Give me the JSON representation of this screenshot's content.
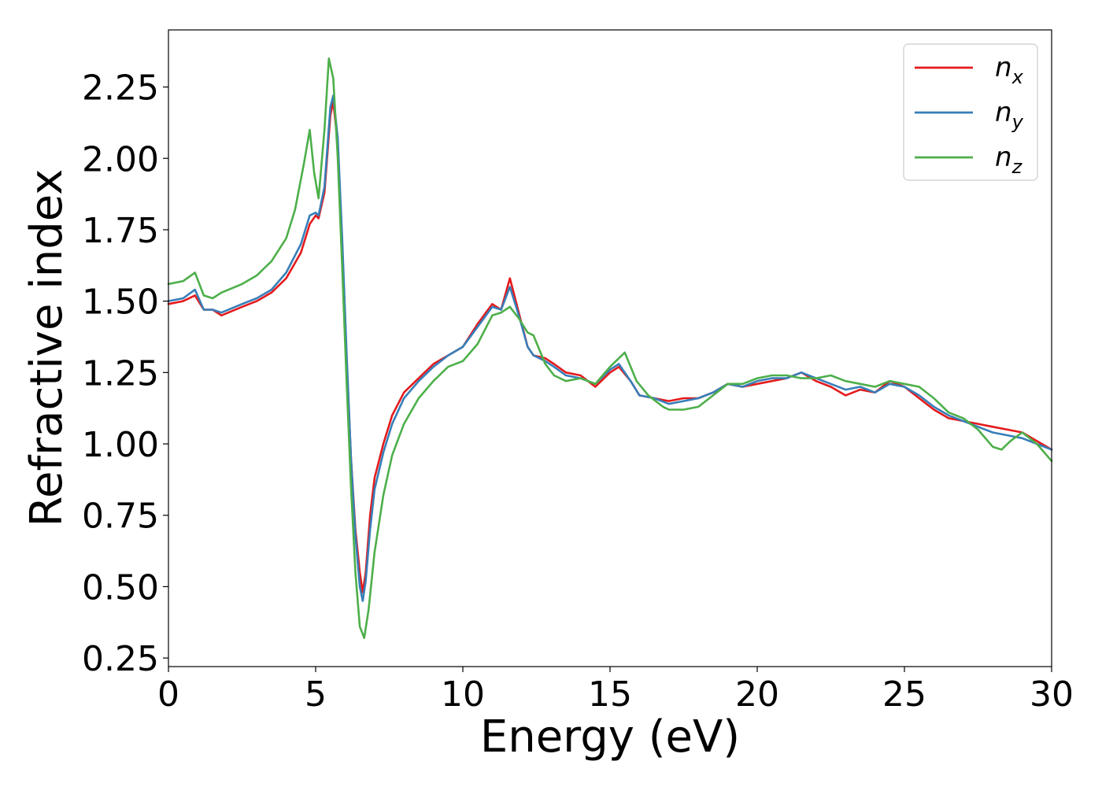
{
  "chart_data": {
    "type": "line",
    "title": "",
    "xlabel": "Energy (eV)",
    "ylabel": "Refractive index",
    "xlim": [
      0,
      30
    ],
    "ylim": [
      0.22,
      2.45
    ],
    "xticks": [
      0,
      5,
      10,
      15,
      20,
      25,
      30
    ],
    "xtick_labels": [
      "0",
      "5",
      "10",
      "15",
      "20",
      "25",
      "30"
    ],
    "yticks": [
      0.25,
      0.5,
      0.75,
      1.0,
      1.25,
      1.5,
      1.75,
      2.0,
      2.25
    ],
    "ytick_labels": [
      "0.25",
      "0.50",
      "0.75",
      "1.00",
      "1.25",
      "1.50",
      "1.75",
      "2.00",
      "2.25"
    ],
    "grid": false,
    "legend_position": "top-right",
    "series": [
      {
        "name": "n_x",
        "legend_base": "n",
        "legend_sub": "x",
        "color": "#e41a1c",
        "points": [
          [
            0,
            1.49
          ],
          [
            0.5,
            1.5
          ],
          [
            0.9,
            1.52
          ],
          [
            1.2,
            1.47
          ],
          [
            1.5,
            1.47
          ],
          [
            1.8,
            1.45
          ],
          [
            2.5,
            1.48
          ],
          [
            3.0,
            1.5
          ],
          [
            3.5,
            1.53
          ],
          [
            4.0,
            1.58
          ],
          [
            4.5,
            1.67
          ],
          [
            4.8,
            1.77
          ],
          [
            5.0,
            1.8
          ],
          [
            5.1,
            1.79
          ],
          [
            5.3,
            1.88
          ],
          [
            5.5,
            2.15
          ],
          [
            5.6,
            2.2
          ],
          [
            5.75,
            2.05
          ],
          [
            5.9,
            1.7
          ],
          [
            6.05,
            1.3
          ],
          [
            6.2,
            0.95
          ],
          [
            6.35,
            0.7
          ],
          [
            6.5,
            0.55
          ],
          [
            6.6,
            0.48
          ],
          [
            6.7,
            0.55
          ],
          [
            6.85,
            0.75
          ],
          [
            7.0,
            0.88
          ],
          [
            7.3,
            1.0
          ],
          [
            7.6,
            1.1
          ],
          [
            8.0,
            1.18
          ],
          [
            8.5,
            1.23
          ],
          [
            9.0,
            1.28
          ],
          [
            9.5,
            1.31
          ],
          [
            10.0,
            1.34
          ],
          [
            10.5,
            1.42
          ],
          [
            11.0,
            1.49
          ],
          [
            11.3,
            1.47
          ],
          [
            11.6,
            1.58
          ],
          [
            11.9,
            1.46
          ],
          [
            12.2,
            1.34
          ],
          [
            12.4,
            1.31
          ],
          [
            12.8,
            1.3
          ],
          [
            13.1,
            1.28
          ],
          [
            13.5,
            1.25
          ],
          [
            14.0,
            1.24
          ],
          [
            14.5,
            1.2
          ],
          [
            15.0,
            1.25
          ],
          [
            15.3,
            1.27
          ],
          [
            15.7,
            1.22
          ],
          [
            16.0,
            1.17
          ],
          [
            16.5,
            1.16
          ],
          [
            17.0,
            1.15
          ],
          [
            17.5,
            1.16
          ],
          [
            18.0,
            1.16
          ],
          [
            18.5,
            1.18
          ],
          [
            19.0,
            1.21
          ],
          [
            19.5,
            1.2
          ],
          [
            20.0,
            1.21
          ],
          [
            20.5,
            1.22
          ],
          [
            21.0,
            1.23
          ],
          [
            21.5,
            1.25
          ],
          [
            22.0,
            1.22
          ],
          [
            22.5,
            1.2
          ],
          [
            23.0,
            1.17
          ],
          [
            23.5,
            1.19
          ],
          [
            24.0,
            1.18
          ],
          [
            24.5,
            1.22
          ],
          [
            25.0,
            1.2
          ],
          [
            25.5,
            1.16
          ],
          [
            26.0,
            1.12
          ],
          [
            26.5,
            1.09
          ],
          [
            27.0,
            1.08
          ],
          [
            27.5,
            1.07
          ],
          [
            28.0,
            1.06
          ],
          [
            28.5,
            1.05
          ],
          [
            29.0,
            1.04
          ],
          [
            29.5,
            1.01
          ],
          [
            30.0,
            0.98
          ]
        ]
      },
      {
        "name": "n_y",
        "legend_base": "n",
        "legend_sub": "y",
        "color": "#377eb8",
        "points": [
          [
            0,
            1.5
          ],
          [
            0.5,
            1.51
          ],
          [
            0.9,
            1.54
          ],
          [
            1.2,
            1.47
          ],
          [
            1.5,
            1.47
          ],
          [
            1.8,
            1.46
          ],
          [
            2.5,
            1.49
          ],
          [
            3.0,
            1.51
          ],
          [
            3.5,
            1.54
          ],
          [
            4.0,
            1.6
          ],
          [
            4.5,
            1.7
          ],
          [
            4.8,
            1.8
          ],
          [
            5.0,
            1.81
          ],
          [
            5.1,
            1.8
          ],
          [
            5.3,
            1.9
          ],
          [
            5.5,
            2.18
          ],
          [
            5.6,
            2.22
          ],
          [
            5.75,
            2.07
          ],
          [
            5.9,
            1.72
          ],
          [
            6.05,
            1.32
          ],
          [
            6.2,
            0.95
          ],
          [
            6.35,
            0.68
          ],
          [
            6.5,
            0.5
          ],
          [
            6.6,
            0.45
          ],
          [
            6.7,
            0.52
          ],
          [
            6.85,
            0.7
          ],
          [
            7.0,
            0.84
          ],
          [
            7.3,
            0.97
          ],
          [
            7.6,
            1.07
          ],
          [
            8.0,
            1.16
          ],
          [
            8.5,
            1.22
          ],
          [
            9.0,
            1.27
          ],
          [
            9.5,
            1.31
          ],
          [
            10.0,
            1.34
          ],
          [
            10.5,
            1.41
          ],
          [
            11.0,
            1.48
          ],
          [
            11.3,
            1.47
          ],
          [
            11.6,
            1.55
          ],
          [
            11.9,
            1.45
          ],
          [
            12.2,
            1.34
          ],
          [
            12.4,
            1.31
          ],
          [
            12.8,
            1.29
          ],
          [
            13.1,
            1.27
          ],
          [
            13.5,
            1.24
          ],
          [
            14.0,
            1.23
          ],
          [
            14.5,
            1.21
          ],
          [
            15.0,
            1.26
          ],
          [
            15.3,
            1.28
          ],
          [
            15.7,
            1.22
          ],
          [
            16.0,
            1.17
          ],
          [
            16.5,
            1.16
          ],
          [
            17.0,
            1.14
          ],
          [
            17.5,
            1.15
          ],
          [
            18.0,
            1.16
          ],
          [
            18.5,
            1.18
          ],
          [
            19.0,
            1.21
          ],
          [
            19.5,
            1.2
          ],
          [
            20.0,
            1.22
          ],
          [
            20.5,
            1.23
          ],
          [
            21.0,
            1.23
          ],
          [
            21.5,
            1.25
          ],
          [
            22.0,
            1.23
          ],
          [
            22.5,
            1.21
          ],
          [
            23.0,
            1.19
          ],
          [
            23.5,
            1.2
          ],
          [
            24.0,
            1.18
          ],
          [
            24.5,
            1.21
          ],
          [
            25.0,
            1.2
          ],
          [
            25.5,
            1.17
          ],
          [
            26.0,
            1.13
          ],
          [
            26.5,
            1.1
          ],
          [
            27.0,
            1.08
          ],
          [
            27.5,
            1.06
          ],
          [
            28.0,
            1.04
          ],
          [
            28.5,
            1.03
          ],
          [
            29.0,
            1.02
          ],
          [
            29.5,
            1.0
          ],
          [
            30.0,
            0.98
          ]
        ]
      },
      {
        "name": "n_z",
        "legend_base": "n",
        "legend_sub": "z",
        "color": "#4daf4a",
        "points": [
          [
            0,
            1.56
          ],
          [
            0.5,
            1.57
          ],
          [
            0.9,
            1.6
          ],
          [
            1.2,
            1.52
          ],
          [
            1.5,
            1.51
          ],
          [
            1.8,
            1.53
          ],
          [
            2.5,
            1.56
          ],
          [
            3.0,
            1.59
          ],
          [
            3.5,
            1.64
          ],
          [
            4.0,
            1.72
          ],
          [
            4.3,
            1.82
          ],
          [
            4.6,
            1.98
          ],
          [
            4.8,
            2.1
          ],
          [
            4.95,
            1.95
          ],
          [
            5.1,
            1.86
          ],
          [
            5.3,
            2.1
          ],
          [
            5.45,
            2.35
          ],
          [
            5.6,
            2.28
          ],
          [
            5.75,
            2.0
          ],
          [
            5.9,
            1.62
          ],
          [
            6.05,
            1.22
          ],
          [
            6.2,
            0.85
          ],
          [
            6.35,
            0.55
          ],
          [
            6.5,
            0.36
          ],
          [
            6.65,
            0.32
          ],
          [
            6.8,
            0.42
          ],
          [
            7.0,
            0.62
          ],
          [
            7.3,
            0.82
          ],
          [
            7.6,
            0.96
          ],
          [
            8.0,
            1.07
          ],
          [
            8.5,
            1.16
          ],
          [
            9.0,
            1.22
          ],
          [
            9.5,
            1.27
          ],
          [
            10.0,
            1.29
          ],
          [
            10.5,
            1.35
          ],
          [
            11.0,
            1.45
          ],
          [
            11.3,
            1.46
          ],
          [
            11.6,
            1.48
          ],
          [
            11.9,
            1.44
          ],
          [
            12.2,
            1.39
          ],
          [
            12.4,
            1.38
          ],
          [
            12.8,
            1.28
          ],
          [
            13.1,
            1.24
          ],
          [
            13.5,
            1.22
          ],
          [
            14.0,
            1.23
          ],
          [
            14.5,
            1.21
          ],
          [
            15.0,
            1.27
          ],
          [
            15.5,
            1.32
          ],
          [
            15.9,
            1.22
          ],
          [
            16.3,
            1.17
          ],
          [
            16.8,
            1.13
          ],
          [
            17.0,
            1.12
          ],
          [
            17.5,
            1.12
          ],
          [
            18.0,
            1.13
          ],
          [
            18.5,
            1.17
          ],
          [
            19.0,
            1.21
          ],
          [
            19.5,
            1.21
          ],
          [
            20.0,
            1.23
          ],
          [
            20.5,
            1.24
          ],
          [
            21.0,
            1.24
          ],
          [
            21.5,
            1.23
          ],
          [
            22.0,
            1.23
          ],
          [
            22.5,
            1.24
          ],
          [
            23.0,
            1.22
          ],
          [
            23.5,
            1.21
          ],
          [
            24.0,
            1.2
          ],
          [
            24.5,
            1.22
          ],
          [
            25.0,
            1.21
          ],
          [
            25.5,
            1.2
          ],
          [
            26.0,
            1.16
          ],
          [
            26.5,
            1.11
          ],
          [
            27.0,
            1.09
          ],
          [
            27.5,
            1.05
          ],
          [
            28.0,
            0.99
          ],
          [
            28.3,
            0.98
          ],
          [
            28.6,
            1.01
          ],
          [
            29.0,
            1.04
          ],
          [
            29.5,
            1.0
          ],
          [
            30.0,
            0.94
          ]
        ]
      }
    ]
  }
}
